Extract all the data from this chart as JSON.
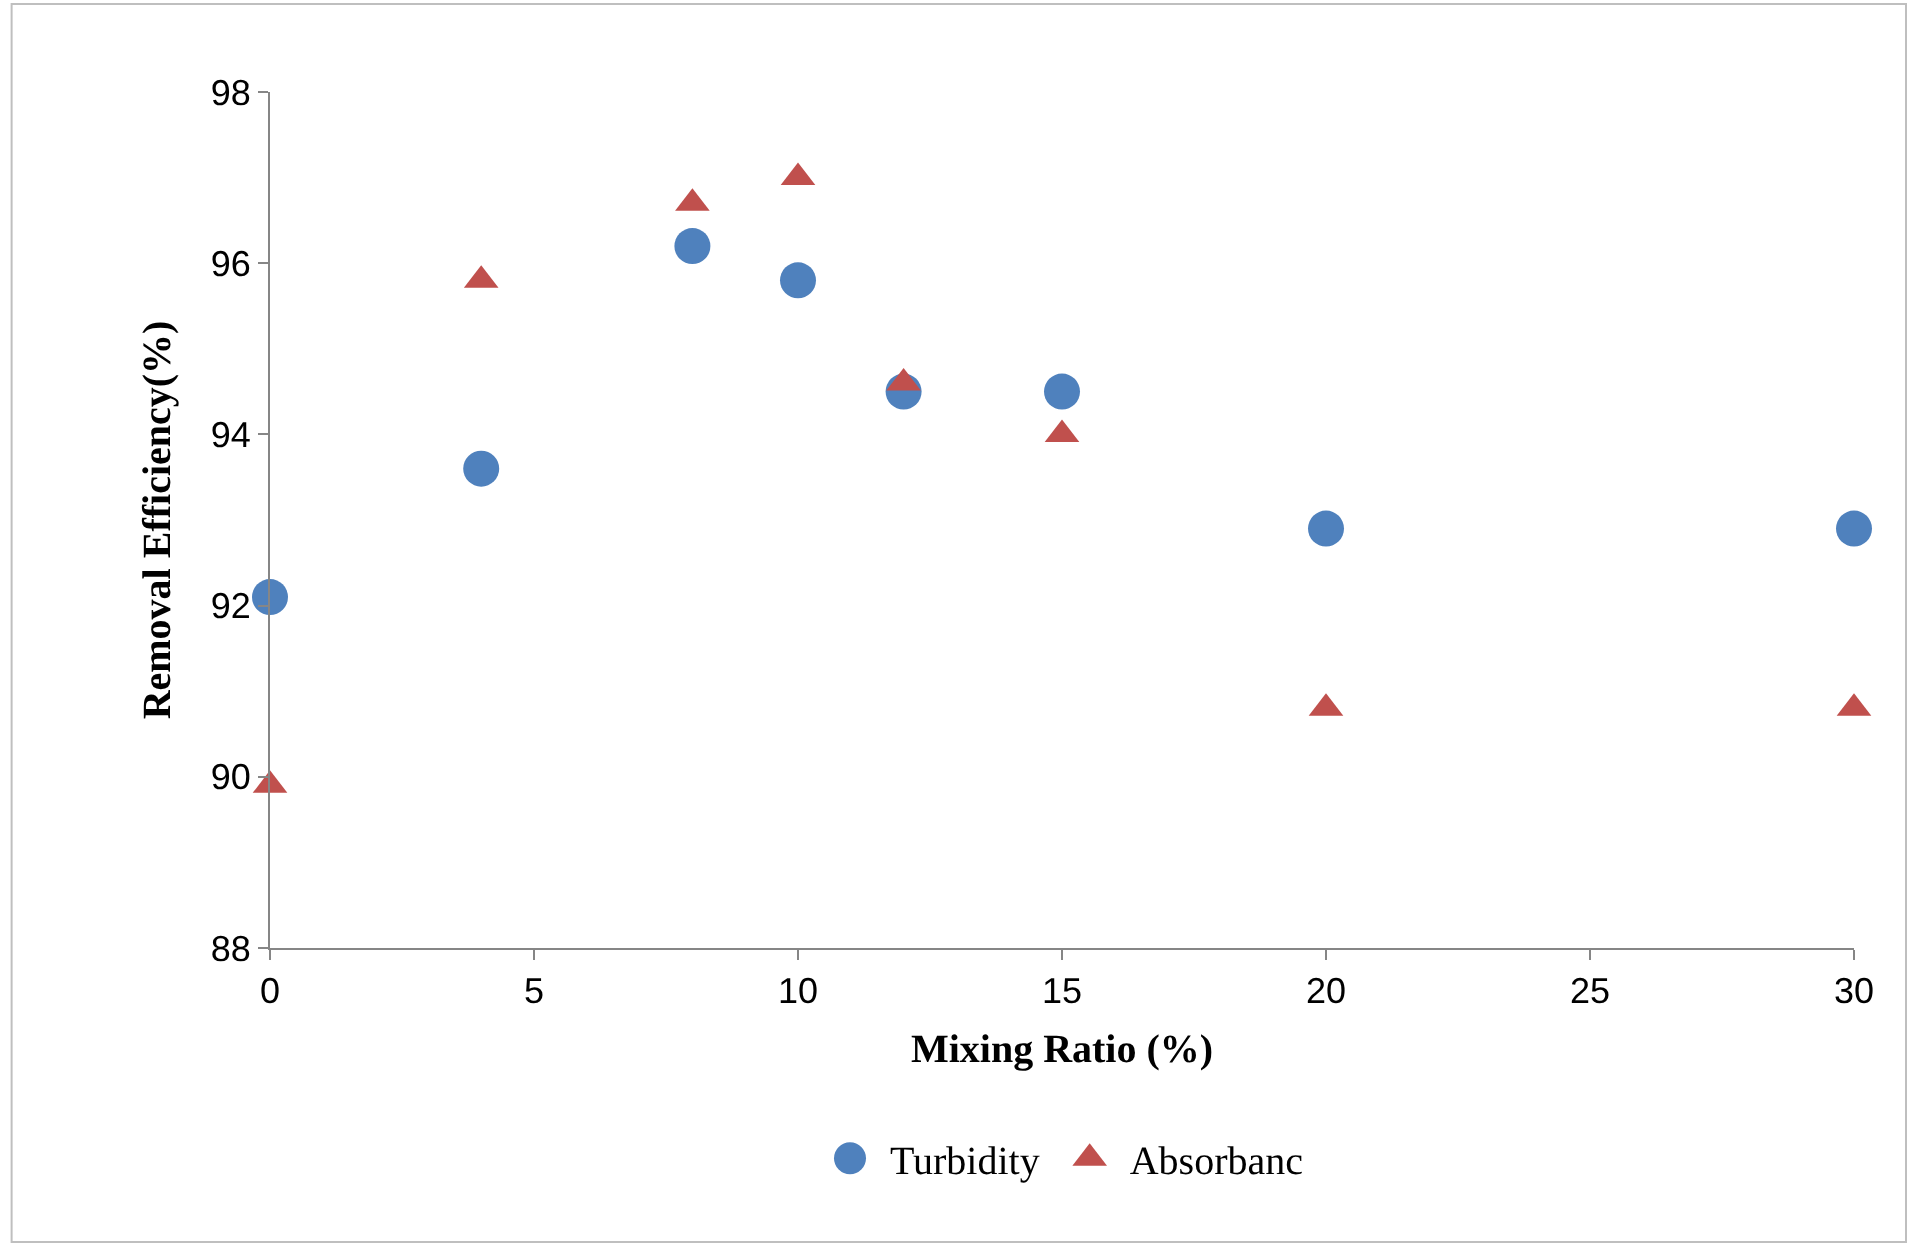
{
  "chart_data": {
    "type": "scatter",
    "xlabel": "Mixing Ratio (%)",
    "ylabel": "Removal Efficiency(%)",
    "x": [
      0,
      4,
      8,
      10,
      12,
      15,
      20,
      30
    ],
    "series": [
      {
        "name": "Turbidity",
        "color": "#4f81bd",
        "marker": "circle",
        "values": [
          92.1,
          93.6,
          96.2,
          95.8,
          94.5,
          94.5,
          92.9,
          92.9
        ]
      },
      {
        "name": "Absorbanc",
        "color": "#c0504d",
        "marker": "triangle",
        "values": [
          89.9,
          95.8,
          96.7,
          97.0,
          94.6,
          94.0,
          90.8,
          90.8
        ]
      }
    ],
    "xlim": [
      0,
      30
    ],
    "xticks": [
      0,
      5,
      10,
      15,
      20,
      25,
      30
    ],
    "ylim": [
      88,
      98
    ],
    "yticks": [
      88,
      90,
      92,
      94,
      96,
      98
    ],
    "legend": "bottom"
  }
}
